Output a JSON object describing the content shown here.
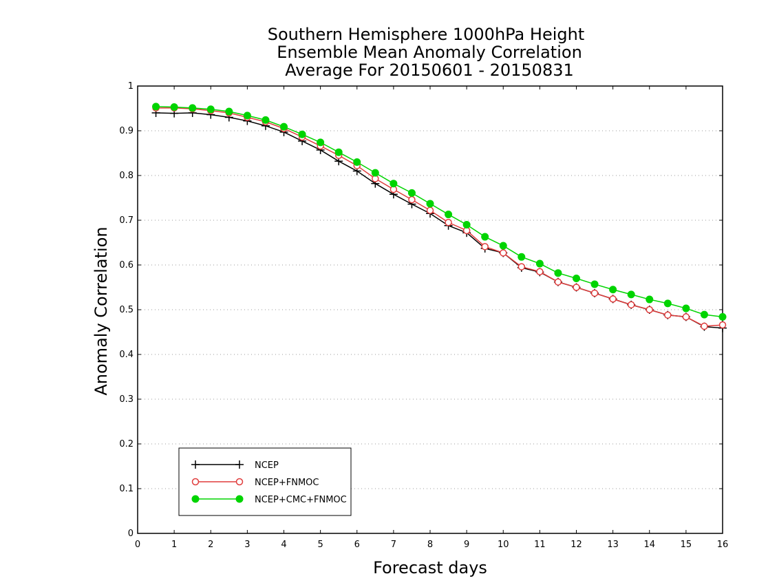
{
  "chart_data": {
    "type": "line",
    "title": [
      "Southern Hemisphere 1000hPa Height",
      "Ensemble Mean Anomaly Correlation",
      "Average For 20150601 - 20150831"
    ],
    "xlabel": "Forecast days",
    "ylabel": "Anomaly Correlation",
    "xlim": [
      0,
      16
    ],
    "ylim": [
      0,
      1
    ],
    "xticks": [
      "0",
      "1",
      "2",
      "3",
      "4",
      "5",
      "6",
      "7",
      "8",
      "9",
      "10",
      "11",
      "12",
      "13",
      "14",
      "15",
      "16"
    ],
    "yticks": [
      "0",
      "0.1",
      "0.2",
      "0.3",
      "0.4",
      "0.5",
      "0.6",
      "0.7",
      "0.8",
      "0.9",
      "1"
    ],
    "grid": "horizontal dotted",
    "legend_position": "lower-left",
    "x": [
      0.5,
      1,
      1.5,
      2,
      2.5,
      3,
      3.5,
      4,
      4.5,
      5,
      5.5,
      6,
      6.5,
      7,
      7.5,
      8,
      8.5,
      9,
      9.5,
      10,
      10.5,
      11,
      11.5,
      12,
      12.5,
      13,
      13.5,
      14,
      14.5,
      15,
      15.5,
      16
    ],
    "series": [
      {
        "name": "NCEP",
        "color": "#000000",
        "marker": "plus",
        "values": [
          0.94,
          0.939,
          0.94,
          0.936,
          0.93,
          0.922,
          0.911,
          0.897,
          0.877,
          0.857,
          0.832,
          0.81,
          0.782,
          0.758,
          0.736,
          0.715,
          0.688,
          0.672,
          0.637,
          0.627,
          0.594,
          0.584,
          0.562,
          0.55,
          0.537,
          0.524,
          0.511,
          0.5,
          0.488,
          0.484,
          0.462,
          0.459
        ]
      },
      {
        "name": "NCEP+FNMOC",
        "color": "#e03c3c",
        "marker": "open-circle",
        "values": [
          0.951,
          0.951,
          0.949,
          0.945,
          0.94,
          0.93,
          0.92,
          0.905,
          0.886,
          0.866,
          0.845,
          0.822,
          0.793,
          0.769,
          0.746,
          0.722,
          0.695,
          0.677,
          0.641,
          0.627,
          0.596,
          0.585,
          0.562,
          0.55,
          0.537,
          0.524,
          0.511,
          0.5,
          0.488,
          0.484,
          0.463,
          0.466
        ]
      },
      {
        "name": "NCEP+CMC+FNMOC",
        "color": "#00d400",
        "marker": "filled-circle",
        "values": [
          0.954,
          0.953,
          0.951,
          0.948,
          0.943,
          0.934,
          0.924,
          0.909,
          0.892,
          0.874,
          0.852,
          0.83,
          0.806,
          0.782,
          0.761,
          0.737,
          0.713,
          0.69,
          0.663,
          0.643,
          0.618,
          0.603,
          0.582,
          0.57,
          0.557,
          0.545,
          0.534,
          0.523,
          0.514,
          0.503,
          0.489,
          0.484
        ]
      }
    ]
  }
}
